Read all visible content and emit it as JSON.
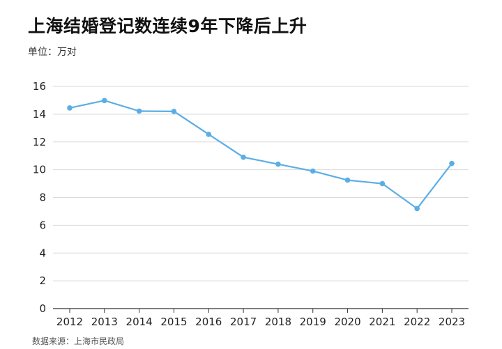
{
  "header": {
    "title": "上海结婚登记数连续9年下降后上升",
    "unit_label": "单位：万对"
  },
  "footer": {
    "source": "数据来源：上海市民政局"
  },
  "colors": {
    "line": "#5aaee6",
    "grid": "#d9d9d9",
    "axis": "#333333"
  },
  "chart_data": {
    "type": "line",
    "title": "上海结婚登记数连续9年下降后上升",
    "unit": "万对",
    "x": [
      "2012",
      "2013",
      "2014",
      "2015",
      "2016",
      "2017",
      "2018",
      "2019",
      "2020",
      "2021",
      "2022",
      "2023"
    ],
    "series": [
      {
        "values": [
          14.45,
          14.98,
          14.22,
          14.2,
          12.55,
          10.9,
          10.4,
          9.9,
          9.25,
          9.0,
          7.2,
          10.45
        ]
      }
    ],
    "y_ticks": [
      "0",
      "2",
      "4",
      "6",
      "8",
      "10",
      "12",
      "14",
      "16"
    ],
    "ylim": [
      0,
      16
    ],
    "grid": true,
    "legend": false
  }
}
